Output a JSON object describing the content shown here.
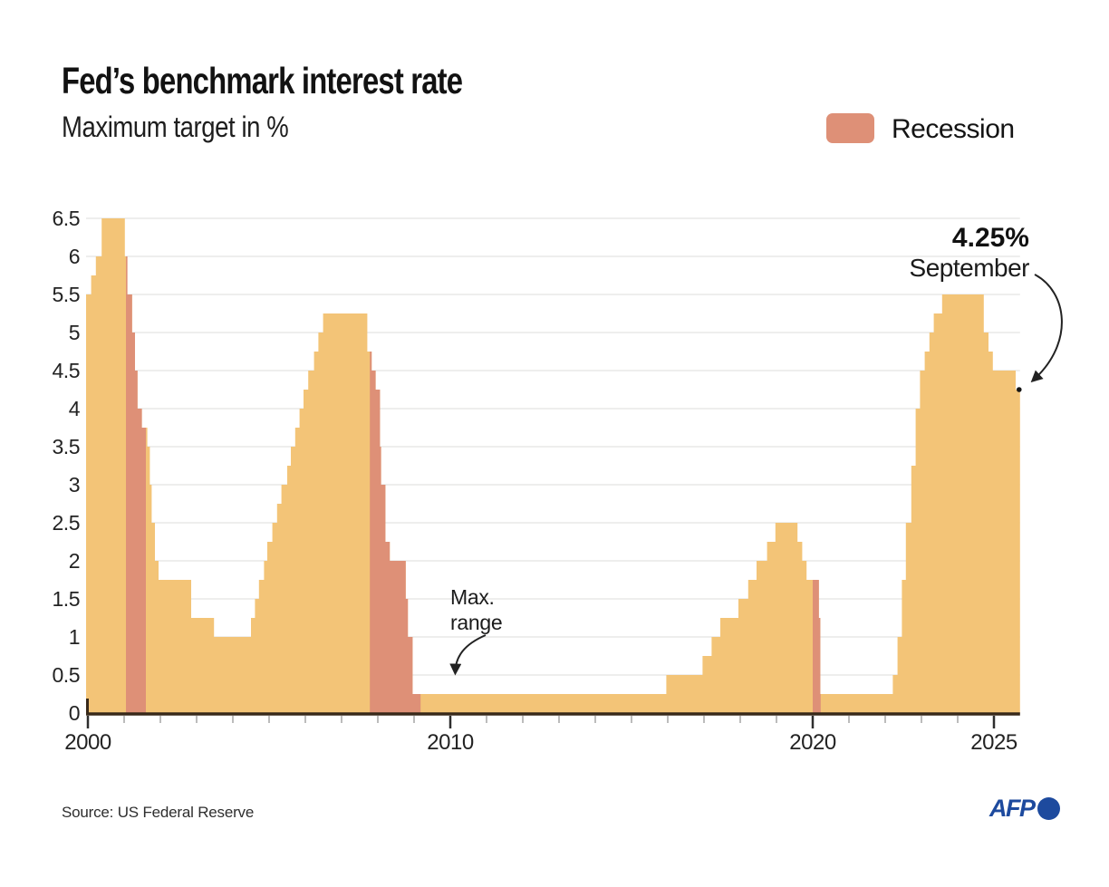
{
  "header": {
    "title": "Fed’s benchmark interest rate",
    "subtitle": "Maximum target in %"
  },
  "legend": {
    "label": "Recession",
    "color": "#DE9077"
  },
  "chart_data": {
    "type": "area",
    "title": "Fed’s benchmark interest rate",
    "subtitle": "Maximum target in %",
    "unit": "%",
    "grid": true,
    "legend_position": "top-right",
    "xlim": [
      1999.95,
      2025.72
    ],
    "ylim": [
      0,
      6.5
    ],
    "yticks": [
      0,
      0.5,
      1,
      1.5,
      2,
      2.5,
      3,
      3.5,
      4,
      4.5,
      5,
      5.5,
      6,
      6.5
    ],
    "xticks": [
      2000,
      2010,
      2020,
      2025
    ],
    "minor_xticks_every_year": true,
    "colors": {
      "series": "#F3C477",
      "recession": "#DE9077",
      "grid": "#E9E9E7",
      "axis": "#38291A",
      "major_tick": "#2E2E2E",
      "minor_tick": "#A5A5A5",
      "arrow": "#222222",
      "afp_blue": "#1D4A9E"
    },
    "steps": [
      [
        2000.0,
        5.5
      ],
      [
        2000.09,
        5.75
      ],
      [
        2000.22,
        6.0
      ],
      [
        2000.38,
        6.5
      ],
      [
        2001.02,
        6.0
      ],
      [
        2001.09,
        5.5
      ],
      [
        2001.22,
        5.0
      ],
      [
        2001.3,
        4.5
      ],
      [
        2001.37,
        4.0
      ],
      [
        2001.49,
        3.75
      ],
      [
        2001.64,
        3.5
      ],
      [
        2001.71,
        3.0
      ],
      [
        2001.76,
        2.5
      ],
      [
        2001.85,
        2.0
      ],
      [
        2001.95,
        1.75
      ],
      [
        2002.85,
        1.25
      ],
      [
        2003.48,
        1.0
      ],
      [
        2004.5,
        1.25
      ],
      [
        2004.61,
        1.5
      ],
      [
        2004.72,
        1.75
      ],
      [
        2004.86,
        2.0
      ],
      [
        2004.95,
        2.25
      ],
      [
        2005.09,
        2.5
      ],
      [
        2005.22,
        2.75
      ],
      [
        2005.34,
        3.0
      ],
      [
        2005.5,
        3.25
      ],
      [
        2005.6,
        3.5
      ],
      [
        2005.72,
        3.75
      ],
      [
        2005.84,
        4.0
      ],
      [
        2005.95,
        4.25
      ],
      [
        2006.08,
        4.5
      ],
      [
        2006.24,
        4.75
      ],
      [
        2006.36,
        5.0
      ],
      [
        2006.49,
        5.25
      ],
      [
        2007.71,
        4.75
      ],
      [
        2007.83,
        4.5
      ],
      [
        2007.94,
        4.25
      ],
      [
        2008.06,
        3.5
      ],
      [
        2008.09,
        3.0
      ],
      [
        2008.21,
        2.25
      ],
      [
        2008.33,
        2.0
      ],
      [
        2008.77,
        1.5
      ],
      [
        2008.83,
        1.0
      ],
      [
        2008.96,
        0.25
      ],
      [
        2015.96,
        0.5
      ],
      [
        2016.96,
        0.75
      ],
      [
        2017.21,
        1.0
      ],
      [
        2017.45,
        1.25
      ],
      [
        2017.95,
        1.5
      ],
      [
        2018.22,
        1.75
      ],
      [
        2018.45,
        2.0
      ],
      [
        2018.74,
        2.25
      ],
      [
        2018.97,
        2.5
      ],
      [
        2019.58,
        2.25
      ],
      [
        2019.71,
        2.0
      ],
      [
        2019.83,
        1.75
      ],
      [
        2020.17,
        1.25
      ],
      [
        2020.21,
        0.25
      ],
      [
        2022.21,
        0.5
      ],
      [
        2022.34,
        1.0
      ],
      [
        2022.46,
        1.75
      ],
      [
        2022.57,
        2.5
      ],
      [
        2022.72,
        3.25
      ],
      [
        2022.84,
        4.0
      ],
      [
        2022.96,
        4.5
      ],
      [
        2023.09,
        4.75
      ],
      [
        2023.22,
        5.0
      ],
      [
        2023.34,
        5.25
      ],
      [
        2023.57,
        5.5
      ],
      [
        2024.72,
        5.0
      ],
      [
        2024.85,
        4.75
      ],
      [
        2024.97,
        4.5
      ],
      [
        2025.6,
        4.25
      ]
    ],
    "recessions": [
      [
        2001.05,
        2001.6
      ],
      [
        2007.78,
        2009.18
      ],
      [
        2020.0,
        2020.22
      ]
    ],
    "annotations": {
      "latest": {
        "value": "4.25%",
        "label": "September",
        "point": [
          2025.72,
          4.25
        ]
      },
      "max_range": {
        "line1": "Max.",
        "line2": "range",
        "target": [
          2010.15,
          0.25
        ]
      }
    }
  },
  "footer": {
    "source": "Source: US Federal Reserve",
    "logo": "AFP"
  }
}
